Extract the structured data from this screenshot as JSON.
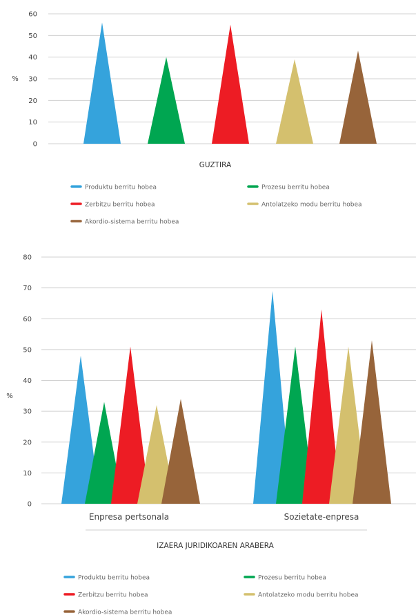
{
  "colors": {
    "blue": "#35a3dc",
    "green": "#00a651",
    "red": "#ed1c24",
    "khaki": "#d4c06e",
    "brown": "#97643a"
  },
  "chart_data": [
    {
      "type": "bar",
      "title": "GUZTIRA",
      "ylabel": "%",
      "ylim": [
        0,
        60
      ],
      "yticks": [
        "0",
        "10",
        "20",
        "30",
        "40",
        "50",
        "60"
      ],
      "grid": true,
      "legend_position": "bottom",
      "series": [
        {
          "name": "Produktu berritu hobea",
          "color": "#35a3dc",
          "values": [
            56
          ]
        },
        {
          "name": "Prozesu berritu hobea",
          "color": "#00a651",
          "values": [
            40
          ]
        },
        {
          "name": "Zerbitzu berritu hobea",
          "color": "#ed1c24",
          "values": [
            55
          ]
        },
        {
          "name": "Antolatzeko modu berritu hobea",
          "color": "#d4c06e",
          "values": [
            39
          ]
        },
        {
          "name": "Akordio-sistema berritu hobea",
          "color": "#97643a",
          "values": [
            43
          ]
        }
      ]
    },
    {
      "type": "bar",
      "title": "IZAERA JURIDIKOAREN ARABERA",
      "ylabel": "%",
      "ylim": [
        0,
        80
      ],
      "yticks": [
        "0",
        "10",
        "20",
        "30",
        "40",
        "50",
        "60",
        "70",
        "80"
      ],
      "categories": [
        "Enpresa pertsonala",
        "Sozietate-enpresa"
      ],
      "grid": true,
      "legend_position": "bottom",
      "series": [
        {
          "name": "Produktu berritu hobea",
          "color": "#35a3dc",
          "values": [
            48,
            69
          ]
        },
        {
          "name": "Prozesu berritu hobea",
          "color": "#00a651",
          "values": [
            33,
            51
          ]
        },
        {
          "name": "Zerbitzu berritu hobea",
          "color": "#ed1c24",
          "values": [
            51,
            63
          ]
        },
        {
          "name": "Antolatzeko modu berritu hobea",
          "color": "#d4c06e",
          "values": [
            32,
            51
          ]
        },
        {
          "name": "Akordio-sistema berritu hobea",
          "color": "#97643a",
          "values": [
            34,
            53
          ]
        }
      ]
    }
  ]
}
